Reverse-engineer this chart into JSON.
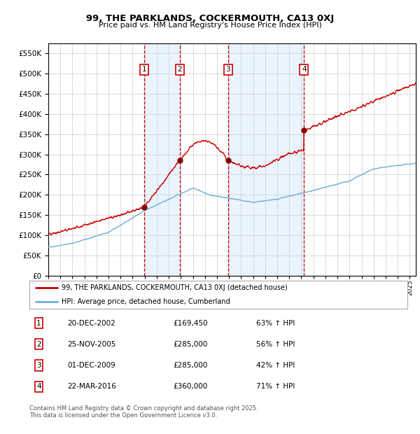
{
  "title": "99, THE PARKLANDS, COCKERMOUTH, CA13 0XJ",
  "subtitle": "Price paid vs. HM Land Registry's House Price Index (HPI)",
  "legend_line1": "99, THE PARKLANDS, COCKERMOUTH, CA13 0XJ (detached house)",
  "legend_line2": "HPI: Average price, detached house, Cumberland",
  "footer1": "Contains HM Land Registry data © Crown copyright and database right 2025.",
  "footer2": "This data is licensed under the Open Government Licence v3.0.",
  "transactions": [
    {
      "num": 1,
      "date_label": "20-DEC-2002",
      "price_label": "£169,450",
      "pct_label": "63% ↑ HPI"
    },
    {
      "num": 2,
      "date_label": "25-NOV-2005",
      "price_label": "£285,000",
      "pct_label": "56% ↑ HPI"
    },
    {
      "num": 3,
      "date_label": "01-DEC-2009",
      "price_label": "£285,000",
      "pct_label": "42% ↑ HPI"
    },
    {
      "num": 4,
      "date_label": "22-MAR-2016",
      "price_label": "£360,000",
      "pct_label": "71% ↑ HPI"
    }
  ],
  "trans_years": [
    2002.97,
    2005.9,
    2009.92,
    2016.22
  ],
  "ylim": [
    0,
    575000
  ],
  "yticks": [
    0,
    50000,
    100000,
    150000,
    200000,
    250000,
    300000,
    350000,
    400000,
    450000,
    500000,
    550000
  ],
  "xlim": [
    1995,
    2025.5
  ],
  "red_color": "#cc0000",
  "blue_color": "#6baed6",
  "shading_color": "#ddeeff",
  "vline_color": "#cc0000",
  "grid_color": "#cccccc",
  "box_color": "#cc0000",
  "background_color": "#ffffff",
  "dot_color": "#8B0000"
}
